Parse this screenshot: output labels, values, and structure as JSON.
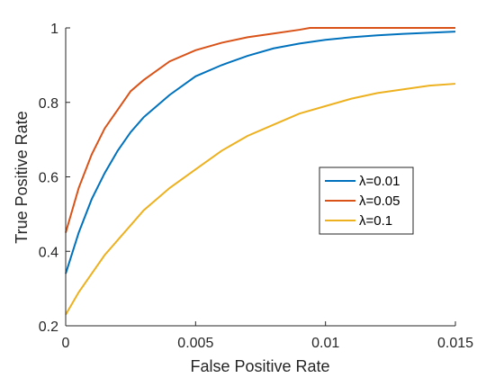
{
  "chart_data": {
    "type": "line",
    "title": "",
    "xlabel": "False Positive Rate",
    "ylabel": "True Positive Rate",
    "xlim": [
      0,
      0.015
    ],
    "ylim": [
      0.2,
      1
    ],
    "xticks": [
      0,
      0.005,
      0.01,
      0.015
    ],
    "xtick_labels": [
      "0",
      "0.005",
      "0.01",
      "0.015"
    ],
    "yticks": [
      0.2,
      0.4,
      0.6,
      0.8,
      1
    ],
    "ytick_labels": [
      "0.2",
      "0.4",
      "0.6",
      "0.8",
      "1"
    ],
    "grid": false,
    "legend_position": "right",
    "series": [
      {
        "name": "λ=0.01",
        "color": "#0072BD",
        "x": [
          0,
          0.0005,
          0.001,
          0.0015,
          0.002,
          0.0025,
          0.003,
          0.004,
          0.005,
          0.006,
          0.007,
          0.008,
          0.009,
          0.01,
          0.011,
          0.012,
          0.013,
          0.014,
          0.015
        ],
        "y": [
          0.34,
          0.45,
          0.54,
          0.61,
          0.67,
          0.72,
          0.76,
          0.82,
          0.87,
          0.9,
          0.925,
          0.945,
          0.958,
          0.968,
          0.975,
          0.98,
          0.984,
          0.987,
          0.99
        ]
      },
      {
        "name": "λ=0.05",
        "color": "#D95319",
        "x": [
          0,
          0.0005,
          0.001,
          0.0015,
          0.002,
          0.0025,
          0.003,
          0.004,
          0.005,
          0.006,
          0.007,
          0.008,
          0.009,
          0.0094,
          0.01,
          0.011,
          0.012,
          0.013,
          0.014,
          0.015
        ],
        "y": [
          0.45,
          0.57,
          0.66,
          0.73,
          0.78,
          0.83,
          0.86,
          0.91,
          0.94,
          0.96,
          0.975,
          0.985,
          0.995,
          1.0,
          1.0,
          1.0,
          1.0,
          1.0,
          1.0,
          1.0
        ]
      },
      {
        "name": "λ=0.1",
        "color": "#EDB120",
        "x": [
          0,
          0.0005,
          0.001,
          0.0015,
          0.002,
          0.0025,
          0.003,
          0.004,
          0.005,
          0.006,
          0.007,
          0.008,
          0.009,
          0.01,
          0.011,
          0.012,
          0.013,
          0.014,
          0.015
        ],
        "y": [
          0.23,
          0.29,
          0.34,
          0.39,
          0.43,
          0.47,
          0.51,
          0.57,
          0.62,
          0.67,
          0.71,
          0.74,
          0.77,
          0.79,
          0.81,
          0.825,
          0.835,
          0.845,
          0.85
        ]
      }
    ]
  }
}
